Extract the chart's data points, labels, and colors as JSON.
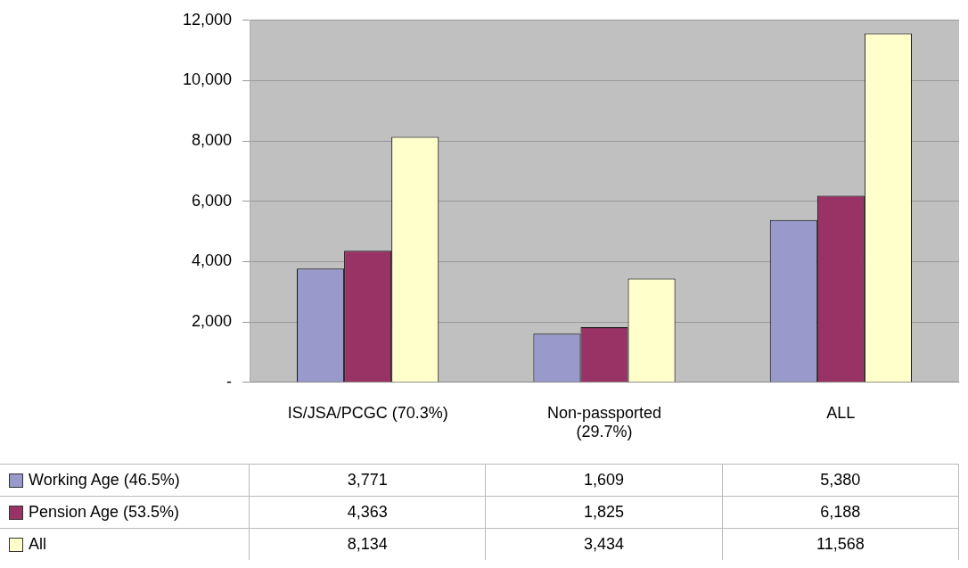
{
  "chart_data": {
    "type": "bar",
    "categories": [
      "IS/JSA/PCGC (70.3%)",
      "Non-passported (29.7%)",
      "ALL"
    ],
    "series": [
      {
        "name": "Working Age (46.5%)",
        "color": "#9999cc",
        "values": [
          3771,
          1609,
          5380
        ],
        "value_labels": [
          "3,771",
          "1,609",
          "5,380"
        ]
      },
      {
        "name": "Pension Age (53.5%)",
        "color": "#993366",
        "values": [
          4363,
          1825,
          6188
        ],
        "value_labels": [
          "4,363",
          "1,825",
          "6,188"
        ]
      },
      {
        "name": "All",
        "color": "#ffffcc",
        "values": [
          8134,
          3434,
          11568
        ],
        "value_labels": [
          "8,134",
          "3,434",
          "11,568"
        ]
      }
    ],
    "ylim": [
      0,
      12000
    ],
    "yticks": [
      {
        "value": 0,
        "label": "-"
      },
      {
        "value": 2000,
        "label": "2,000"
      },
      {
        "value": 4000,
        "label": "4,000"
      },
      {
        "value": 6000,
        "label": "6,000"
      },
      {
        "value": 8000,
        "label": "8,000"
      },
      {
        "value": 10000,
        "label": "10,000"
      },
      {
        "value": 12000,
        "label": "12,000"
      }
    ],
    "grid": "y",
    "legend": "bottom"
  }
}
